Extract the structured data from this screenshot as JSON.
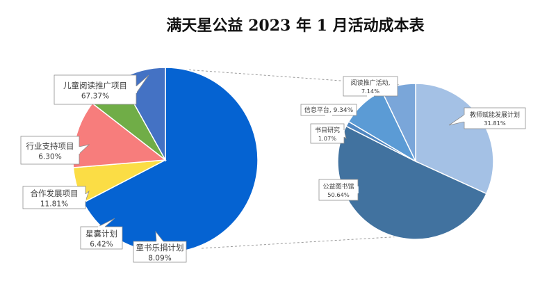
{
  "chart_data": [
    {
      "type": "pie",
      "title": "满天星公益 2023 年 1 月活动成本表",
      "slices": [
        {
          "label": "儿童阅读推广项目",
          "value": 67.37,
          "value_label": "67.37%",
          "color": "#0563d2"
        },
        {
          "label": "行业支持项目",
          "value": 6.3,
          "value_label": "6.30%",
          "color": "#fbdd45"
        },
        {
          "label": "合作发展项目",
          "value": 11.81,
          "value_label": "11.81%",
          "color": "#f77d7c"
        },
        {
          "label": "星囊计划",
          "value": 6.42,
          "value_label": "6.42%",
          "color": "#70ad47"
        },
        {
          "label": "童书乐捐计划",
          "value": 8.09,
          "value_label": "8.09%",
          "color": "#4472c4"
        }
      ]
    },
    {
      "type": "pie",
      "slices": [
        {
          "label": "教师赋能发展计划",
          "value": 31.81,
          "value_label": "31.81%",
          "color": "#a4c1e5"
        },
        {
          "label": "公益图书馆",
          "value": 50.64,
          "value_label": "50.64%",
          "color": "#41729f"
        },
        {
          "label": "书目研究",
          "value": 1.07,
          "value_label": "1.07%",
          "color": "#4f86c0"
        },
        {
          "label": "信息平台,",
          "value": 9.34,
          "value_label": "9.34%",
          "color": "#5b9bd5"
        },
        {
          "label": "阅读推广活动,",
          "value": 7.14,
          "value_label": "7.14%",
          "color": "#7aa6d9"
        }
      ]
    }
  ]
}
